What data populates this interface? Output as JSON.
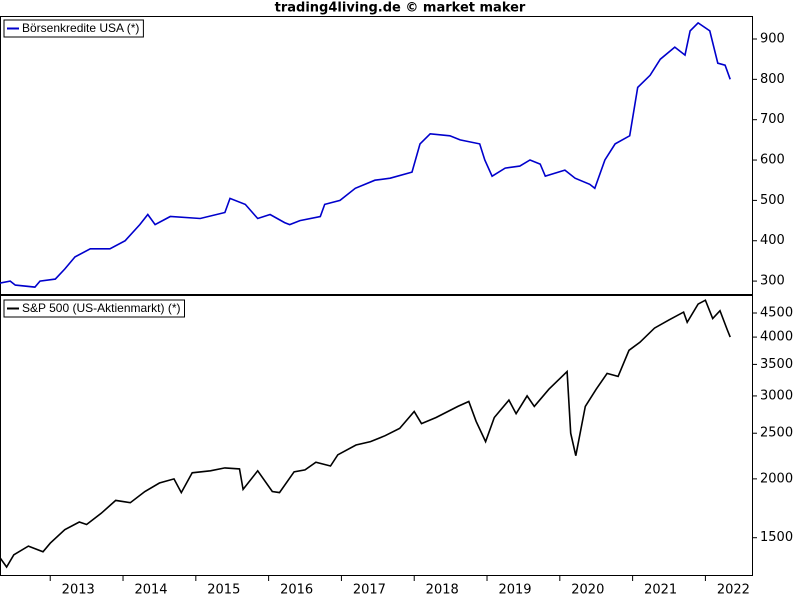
{
  "chart_data": [
    {
      "type": "line",
      "title": "trading4living.de © market maker",
      "x": [
        2012.31,
        2012.45,
        2012.52,
        2012.79,
        2012.86,
        2013.07,
        2013.2,
        2013.34,
        2013.55,
        2013.82,
        2014.03,
        2014.23,
        2014.34,
        2014.44,
        2014.65,
        2015.06,
        2015.4,
        2015.47,
        2015.68,
        2015.85,
        2016.02,
        2016.22,
        2016.29,
        2016.43,
        2016.71,
        2016.77,
        2016.98,
        2017.19,
        2017.46,
        2017.67,
        2017.97,
        2018.08,
        2018.22,
        2018.49,
        2018.63,
        2018.9,
        2018.97,
        2019.07,
        2019.25,
        2019.45,
        2019.59,
        2019.73,
        2019.8,
        2020.07,
        2020.21,
        2020.41,
        2020.48,
        2020.62,
        2020.76,
        2020.96,
        2021.07,
        2021.24,
        2021.38,
        2021.58,
        2021.72,
        2021.79,
        2021.9,
        2022.06,
        2022.17,
        2022.27,
        2022.34
      ],
      "series": [
        {
          "name": "Börsenkredite USA (*)",
          "color": "#0000cc",
          "values": [
            295,
            300,
            290,
            285,
            300,
            305,
            330,
            360,
            380,
            380,
            400,
            440,
            465,
            440,
            460,
            455,
            470,
            505,
            490,
            455,
            465,
            445,
            440,
            450,
            460,
            490,
            500,
            530,
            550,
            555,
            570,
            640,
            665,
            660,
            650,
            640,
            600,
            560,
            580,
            585,
            600,
            590,
            560,
            575,
            555,
            540,
            530,
            600,
            640,
            660,
            780,
            810,
            850,
            880,
            860,
            920,
            940,
            920,
            840,
            835,
            800
          ]
        }
      ],
      "xlim": [
        2012.31,
        2022.64
      ],
      "ylim": [
        268,
        957
      ],
      "yticks": [
        300,
        400,
        500,
        600,
        700,
        800,
        900
      ]
    },
    {
      "type": "line",
      "log": true,
      "x": [
        2012.31,
        2012.4,
        2012.5,
        2012.7,
        2012.9,
        2013.0,
        2013.2,
        2013.4,
        2013.5,
        2013.7,
        2013.9,
        2014.1,
        2014.3,
        2014.5,
        2014.7,
        2014.8,
        2014.95,
        2015.2,
        2015.4,
        2015.6,
        2015.65,
        2015.85,
        2016.05,
        2016.15,
        2016.35,
        2016.5,
        2016.65,
        2016.85,
        2016.95,
        2017.2,
        2017.4,
        2017.6,
        2017.8,
        2018.0,
        2018.1,
        2018.3,
        2018.6,
        2018.75,
        2018.85,
        2018.98,
        2019.1,
        2019.3,
        2019.4,
        2019.55,
        2019.65,
        2019.85,
        2020.1,
        2020.15,
        2020.22,
        2020.35,
        2020.5,
        2020.65,
        2020.8,
        2020.95,
        2021.1,
        2021.3,
        2021.5,
        2021.7,
        2021.75,
        2021.9,
        2022.0,
        2022.1,
        2022.2,
        2022.3,
        2022.34
      ],
      "series": [
        {
          "name": "S&P 500 (US-Aktienmarkt) (*)",
          "color": "#000000",
          "values": [
            1360,
            1300,
            1380,
            1440,
            1400,
            1460,
            1560,
            1620,
            1600,
            1690,
            1800,
            1780,
            1880,
            1960,
            2000,
            1870,
            2060,
            2080,
            2110,
            2100,
            1900,
            2080,
            1880,
            1870,
            2070,
            2090,
            2170,
            2130,
            2250,
            2360,
            2400,
            2470,
            2560,
            2780,
            2620,
            2700,
            2850,
            2920,
            2650,
            2400,
            2700,
            2940,
            2750,
            3000,
            2850,
            3100,
            3380,
            2500,
            2240,
            2850,
            3100,
            3350,
            3300,
            3750,
            3900,
            4180,
            4350,
            4520,
            4300,
            4700,
            4790,
            4380,
            4550,
            4150,
            4000
          ]
        }
      ],
      "xlim": [
        2012.31,
        2022.64
      ],
      "xticks": [
        2013,
        2014,
        2015,
        2016,
        2017,
        2018,
        2019,
        2020,
        2021,
        2022
      ],
      "ylim": [
        1250,
        4890
      ],
      "yticks": [
        1500,
        2000,
        2500,
        3000,
        3500,
        4000,
        4500
      ]
    }
  ]
}
